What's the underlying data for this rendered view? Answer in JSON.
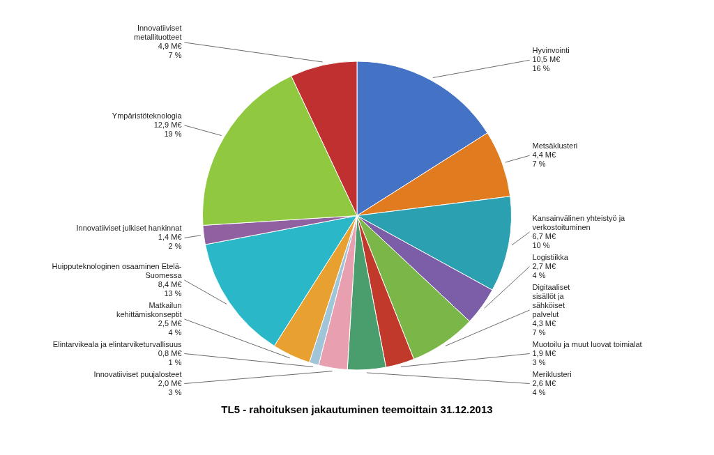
{
  "chart_data": {
    "type": "pie",
    "title": "TL5 - rahoituksen jakautuminen teemoittain 31.12.2013",
    "categories": [
      "Hyvinvointi\n10,5 M€\n16 %",
      "Metsäklusteri\n4,4 M€\n7 %",
      "Kansainvälinen yhteistyö ja\nverkostoituminen\n6,7 M€\n10 %",
      "Logistiikka\n2,7 M€\n4 %",
      "Digitaaliset\nsisällöt ja\nsähköiset\npalvelut\n4,3 M€\n7 %",
      "Muotoilu ja muut luovat toimialat\n1,9 M€\n3 %",
      "Meriklusteri\n2,6 M€\n4 %",
      "Innovatiiviset puujalosteet\n2,0 M€\n3 %",
      "Elintarvikeala ja elintarviketurvallisuus\n0,8 M€\n1 %",
      "Matkailun\nkehittämiskonseptit\n2,5 M€\n4 %",
      "Huipputeknologinen osaaminen Etelä-\nSuomessa\n8,4 M€\n13 %",
      "Innovatiiviset julkiset hankinnat\n1,4 M€\n2 %",
      "Ympäristöteknologia\n12,9 M€\n19 %",
      "Innovatiiviset\nmetallituotteet\n4,9 M€\n7 %"
    ],
    "values": [
      16,
      7,
      10,
      4,
      7,
      3,
      4,
      3,
      1,
      4,
      13,
      2,
      19,
      7
    ],
    "colors": [
      "#4472C4",
      "#E07B20",
      "#2AA0B0",
      "#7B5EA7",
      "#7AB648",
      "#C0392B",
      "#4A9E6E",
      "#E8A0B0",
      "#A0C4D8",
      "#E8A030",
      "#2AB8C8",
      "#9060A0",
      "#90C840",
      "#C03030"
    ]
  }
}
